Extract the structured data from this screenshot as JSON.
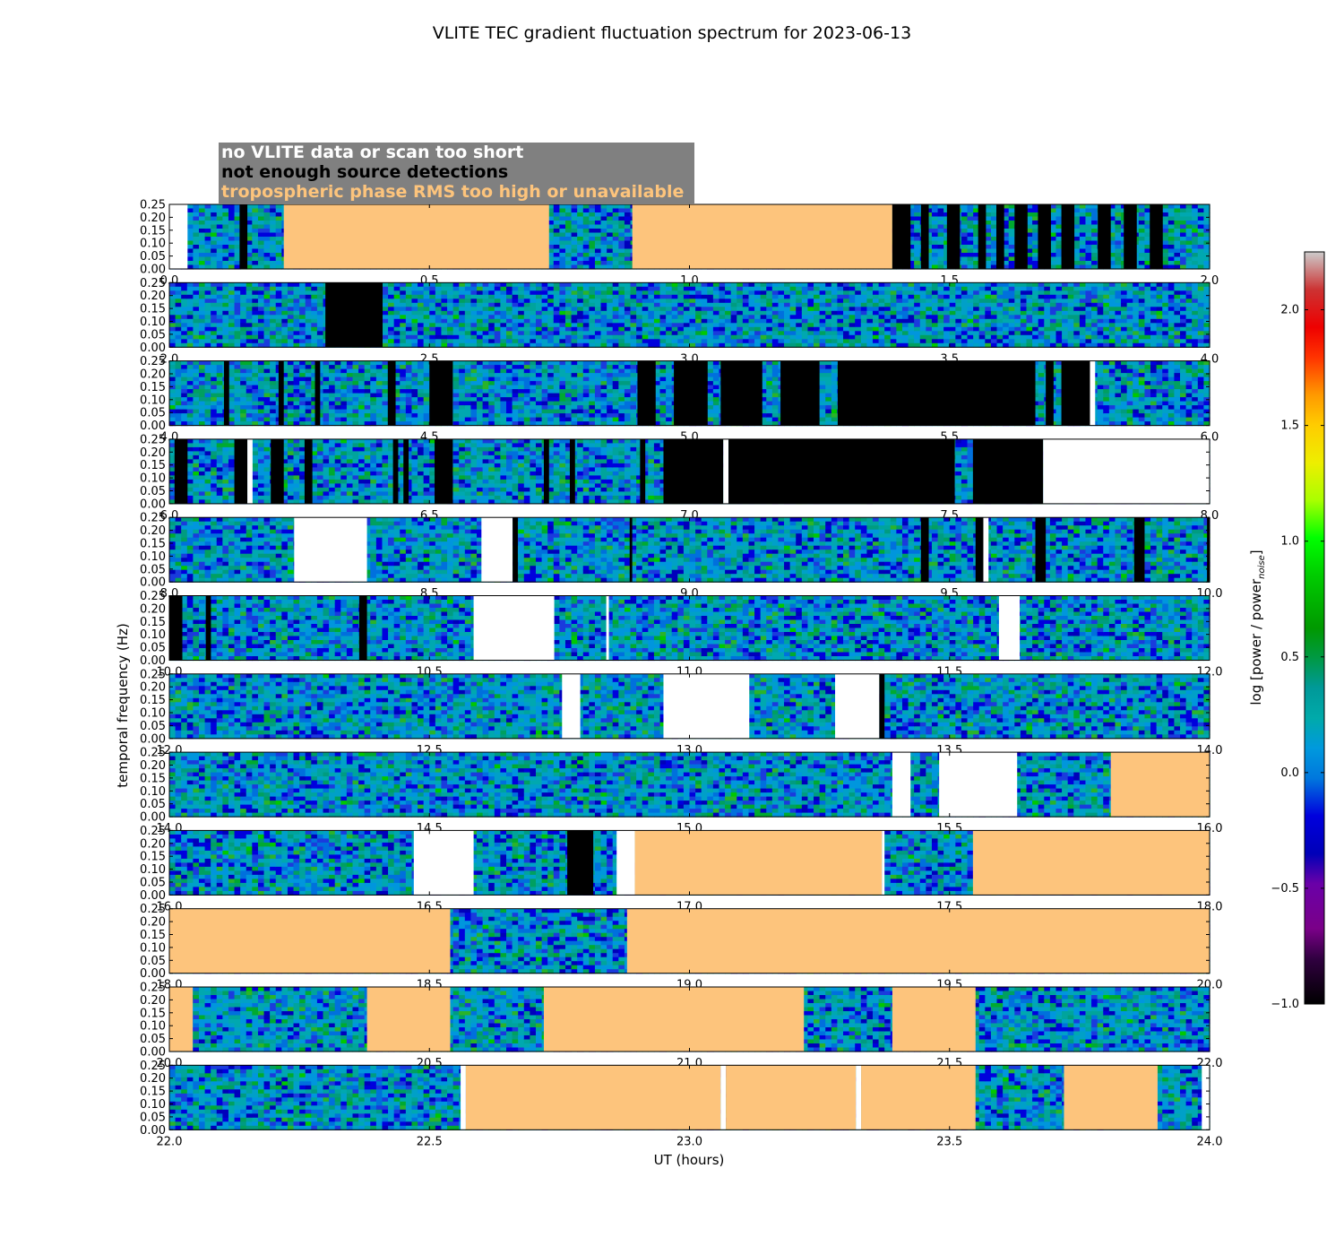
{
  "chart_data": {
    "type": "heatmap",
    "title": "VLITE TEC gradient fluctuation spectrum for 2023-06-13",
    "xlabel": "UT (hours)",
    "ylabel": "temporal frequency (Hz)",
    "colorbar_label": "log [power / power",
    "colorbar_label_sub": "noise",
    "colorbar_label_end": "]",
    "colorbar_range": [
      -1.0,
      2.25
    ],
    "colorbar_ticks": [
      "2.0",
      "1.5",
      "1.0",
      "0.5",
      "0.0",
      "−0.5",
      "−1.0"
    ],
    "y_ticks": [
      "0.25",
      "0.20",
      "0.15",
      "0.10",
      "0.05",
      "0.00"
    ],
    "ylim": [
      0,
      0.25
    ],
    "legend": [
      {
        "label": "no VLITE data or scan too short",
        "color": "#ffffff",
        "state": "none"
      },
      {
        "label": "not enough source detections",
        "color": "#000000",
        "state": "black"
      },
      {
        "label": "tropospheric phase RMS too high or unavailable",
        "color": "#fdc47c",
        "state": "tropo"
      }
    ],
    "colors": {
      "legend_bg": "#808080",
      "tropo": "#fdc47c",
      "nodata": "#ffffff",
      "nodet": "#000000"
    },
    "panels": [
      {
        "range": [
          0,
          2
        ],
        "ticks": [
          "0.0",
          "0.5",
          "1.0",
          "1.5",
          "2.0"
        ],
        "segments": [
          [
            "none",
            0,
            0.035
          ],
          [
            "data",
            0.035,
            0.135
          ],
          [
            "black",
            0.135,
            0.15
          ],
          [
            "data",
            0.15,
            0.22
          ],
          [
            "tropo",
            0.22,
            0.73
          ],
          [
            "data",
            0.73,
            0.89
          ],
          [
            "tropo",
            0.89,
            1.39
          ],
          [
            "black",
            1.39,
            1.425
          ],
          [
            "data",
            1.425,
            1.445
          ],
          [
            "black",
            1.445,
            1.46
          ],
          [
            "data",
            1.46,
            1.495
          ],
          [
            "black",
            1.495,
            1.52
          ],
          [
            "data",
            1.52,
            1.555
          ],
          [
            "black",
            1.555,
            1.57
          ],
          [
            "data",
            1.57,
            1.59
          ],
          [
            "black",
            1.59,
            1.605
          ],
          [
            "data",
            1.605,
            1.625
          ],
          [
            "black",
            1.625,
            1.65
          ],
          [
            "data",
            1.65,
            1.67
          ],
          [
            "black",
            1.67,
            1.695
          ],
          [
            "data",
            1.695,
            1.715
          ],
          [
            "black",
            1.715,
            1.74
          ],
          [
            "data",
            1.74,
            1.785
          ],
          [
            "black",
            1.785,
            1.81
          ],
          [
            "data",
            1.81,
            1.835
          ],
          [
            "black",
            1.835,
            1.86
          ],
          [
            "data",
            1.86,
            1.885
          ],
          [
            "black",
            1.885,
            1.91
          ],
          [
            "data",
            1.91,
            2.0
          ]
        ]
      },
      {
        "range": [
          2,
          4
        ],
        "ticks": [
          "2.0",
          "2.5",
          "3.0",
          "3.5",
          "4.0"
        ],
        "segments": [
          [
            "data",
            2.0,
            2.3
          ],
          [
            "black",
            2.3,
            2.41
          ],
          [
            "data",
            2.41,
            4.0
          ]
        ]
      },
      {
        "range": [
          4,
          6
        ],
        "ticks": [
          "4.0",
          "4.5",
          "5.0",
          "5.5",
          "6.0"
        ],
        "segments": [
          [
            "data",
            4.0,
            4.105
          ],
          [
            "black",
            4.105,
            4.115
          ],
          [
            "data",
            4.115,
            4.21
          ],
          [
            "black",
            4.21,
            4.22
          ],
          [
            "data",
            4.22,
            4.28
          ],
          [
            "black",
            4.28,
            4.29
          ],
          [
            "data",
            4.29,
            4.42
          ],
          [
            "black",
            4.42,
            4.435
          ],
          [
            "data",
            4.435,
            4.5
          ],
          [
            "black",
            4.5,
            4.545
          ],
          [
            "data",
            4.545,
            4.9
          ],
          [
            "black",
            4.9,
            4.935
          ],
          [
            "data",
            4.935,
            4.97
          ],
          [
            "black",
            4.97,
            5.035
          ],
          [
            "data",
            5.035,
            5.06
          ],
          [
            "black",
            5.06,
            5.14
          ],
          [
            "data",
            5.14,
            5.175
          ],
          [
            "black",
            5.175,
            5.25
          ],
          [
            "data",
            5.25,
            5.285
          ],
          [
            "black",
            5.285,
            5.665
          ],
          [
            "data",
            5.665,
            5.685
          ],
          [
            "black",
            5.685,
            5.7
          ],
          [
            "data",
            5.7,
            5.715
          ],
          [
            "black",
            5.715,
            5.77
          ],
          [
            "none",
            5.77,
            5.78
          ],
          [
            "data",
            5.78,
            6.0
          ]
        ]
      },
      {
        "range": [
          6,
          8
        ],
        "ticks": [
          "6.0",
          "6.5",
          "7.0",
          "7.5",
          "8.0"
        ],
        "segments": [
          [
            "data",
            6.0,
            6.01
          ],
          [
            "black",
            6.01,
            6.035
          ],
          [
            "data",
            6.035,
            6.125
          ],
          [
            "black",
            6.125,
            6.15
          ],
          [
            "none",
            6.15,
            6.16
          ],
          [
            "data",
            6.16,
            6.195
          ],
          [
            "black",
            6.195,
            6.22
          ],
          [
            "data",
            6.22,
            6.26
          ],
          [
            "black",
            6.26,
            6.275
          ],
          [
            "data",
            6.275,
            6.43
          ],
          [
            "black",
            6.43,
            6.44
          ],
          [
            "data",
            6.44,
            6.45
          ],
          [
            "black",
            6.45,
            6.46
          ],
          [
            "data",
            6.46,
            6.51
          ],
          [
            "black",
            6.51,
            6.545
          ],
          [
            "data",
            6.545,
            6.72
          ],
          [
            "black",
            6.72,
            6.73
          ],
          [
            "data",
            6.73,
            6.77
          ],
          [
            "black",
            6.77,
            6.78
          ],
          [
            "data",
            6.78,
            6.905
          ],
          [
            "black",
            6.905,
            6.915
          ],
          [
            "data",
            6.915,
            6.95
          ],
          [
            "black",
            6.95,
            7.065
          ],
          [
            "none",
            7.065,
            7.075
          ],
          [
            "black",
            7.075,
            7.51
          ],
          [
            "data",
            7.51,
            7.545
          ],
          [
            "black",
            7.545,
            7.68
          ],
          [
            "none",
            7.68,
            8.0
          ]
        ]
      },
      {
        "range": [
          8,
          10
        ],
        "ticks": [
          "8.0",
          "8.5",
          "9.0",
          "9.5",
          "10.0"
        ],
        "segments": [
          [
            "data",
            8.0,
            8.24
          ],
          [
            "none",
            8.24,
            8.38
          ],
          [
            "data",
            8.38,
            8.6
          ],
          [
            "none",
            8.6,
            8.66
          ],
          [
            "black",
            8.66,
            8.67
          ],
          [
            "data",
            8.67,
            8.885
          ],
          [
            "black",
            8.885,
            8.89
          ],
          [
            "data",
            8.89,
            9.445
          ],
          [
            "black",
            9.445,
            9.46
          ],
          [
            "data",
            9.46,
            9.55
          ],
          [
            "black",
            9.55,
            9.565
          ],
          [
            "none",
            9.565,
            9.575
          ],
          [
            "data",
            9.575,
            9.665
          ],
          [
            "black",
            9.665,
            9.685
          ],
          [
            "data",
            9.685,
            9.855
          ],
          [
            "black",
            9.855,
            9.875
          ],
          [
            "data",
            9.875,
            9.995
          ],
          [
            "black",
            9.995,
            10.0
          ]
        ]
      },
      {
        "range": [
          10,
          12
        ],
        "ticks": [
          "10.0",
          "10.5",
          "11.0",
          "11.5",
          "12.0"
        ],
        "segments": [
          [
            "black",
            10.0,
            10.025
          ],
          [
            "data",
            10.025,
            10.07
          ],
          [
            "black",
            10.07,
            10.08
          ],
          [
            "data",
            10.08,
            10.365
          ],
          [
            "black",
            10.365,
            10.38
          ],
          [
            "data",
            10.38,
            10.585
          ],
          [
            "none",
            10.585,
            10.74
          ],
          [
            "data",
            10.74,
            10.84
          ],
          [
            "none",
            10.84,
            10.845
          ],
          [
            "data",
            10.845,
            11.595
          ],
          [
            "none",
            11.595,
            11.635
          ],
          [
            "data",
            11.635,
            12.0
          ]
        ]
      },
      {
        "range": [
          12,
          14
        ],
        "ticks": [
          "12.0",
          "12.5",
          "13.0",
          "13.5",
          "14.0"
        ],
        "segments": [
          [
            "data",
            12.0,
            12.755
          ],
          [
            "none",
            12.755,
            12.79
          ],
          [
            "data",
            12.79,
            12.95
          ],
          [
            "none",
            12.95,
            13.115
          ],
          [
            "data",
            13.115,
            13.28
          ],
          [
            "none",
            13.28,
            13.365
          ],
          [
            "black",
            13.365,
            13.375
          ],
          [
            "data",
            13.375,
            14.0
          ]
        ]
      },
      {
        "range": [
          14,
          16
        ],
        "ticks": [
          "14.0",
          "14.5",
          "15.0",
          "15.5",
          "16.0"
        ],
        "segments": [
          [
            "data",
            14.0,
            15.39
          ],
          [
            "none",
            15.39,
            15.425
          ],
          [
            "data",
            15.425,
            15.48
          ],
          [
            "none",
            15.48,
            15.63
          ],
          [
            "data",
            15.63,
            15.81
          ],
          [
            "tropo",
            15.81,
            16.0
          ]
        ]
      },
      {
        "range": [
          16,
          18
        ],
        "ticks": [
          "16.0",
          "16.5",
          "17.0",
          "17.5",
          "18.0"
        ],
        "segments": [
          [
            "data",
            16.0,
            16.47
          ],
          [
            "none",
            16.47,
            16.585
          ],
          [
            "data",
            16.585,
            16.765
          ],
          [
            "black",
            16.765,
            16.815
          ],
          [
            "data",
            16.815,
            16.86
          ],
          [
            "none",
            16.86,
            16.895
          ],
          [
            "tropo",
            16.895,
            17.37
          ],
          [
            "none",
            17.37,
            17.375
          ],
          [
            "data",
            17.375,
            17.545
          ],
          [
            "tropo",
            17.545,
            18.0
          ]
        ]
      },
      {
        "range": [
          18,
          20
        ],
        "ticks": [
          "18.0",
          "18.5",
          "19.0",
          "19.5",
          "20.0"
        ],
        "segments": [
          [
            "tropo",
            18.0,
            18.54
          ],
          [
            "data",
            18.54,
            18.88
          ],
          [
            "tropo",
            18.88,
            20.0
          ]
        ]
      },
      {
        "range": [
          20,
          22
        ],
        "ticks": [
          "20.0",
          "20.5",
          "21.0",
          "21.5",
          "22.0"
        ],
        "segments": [
          [
            "tropo",
            20.0,
            20.045
          ],
          [
            "data",
            20.045,
            20.38
          ],
          [
            "tropo",
            20.38,
            20.54
          ],
          [
            "data",
            20.54,
            20.72
          ],
          [
            "tropo",
            20.72,
            21.22
          ],
          [
            "data",
            21.22,
            21.39
          ],
          [
            "tropo",
            21.39,
            21.55
          ],
          [
            "data",
            21.55,
            22.0
          ]
        ]
      },
      {
        "range": [
          22,
          24
        ],
        "ticks": [
          "22.0",
          "22.5",
          "23.0",
          "23.5",
          "24.0"
        ],
        "segments": [
          [
            "data",
            22.0,
            22.56
          ],
          [
            "none",
            22.56,
            22.57
          ],
          [
            "tropo",
            22.57,
            23.06
          ],
          [
            "none",
            23.06,
            23.07
          ],
          [
            "tropo",
            23.07,
            23.32
          ],
          [
            "none",
            23.32,
            23.33
          ],
          [
            "tropo",
            23.33,
            23.55
          ],
          [
            "data",
            23.55,
            23.72
          ],
          [
            "tropo",
            23.72,
            23.9
          ],
          [
            "data",
            23.9,
            23.985
          ],
          [
            "none",
            23.985,
            24.0
          ]
        ]
      }
    ]
  }
}
